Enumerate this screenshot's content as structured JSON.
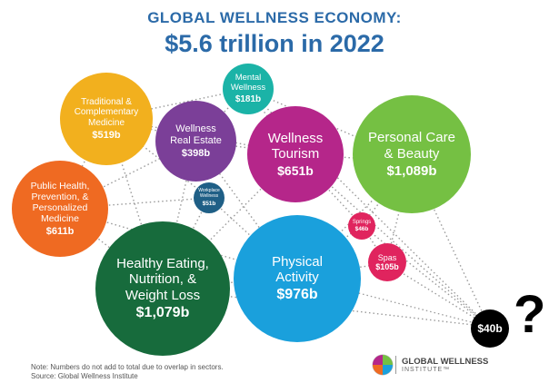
{
  "header": {
    "title_line1": "GLOBAL WELLNESS ECONOMY:",
    "title_line2": "$5.6 trillion in 2022"
  },
  "sectors": [
    {
      "key": "traditional",
      "label": "Traditional &\nComplementary\nMedicine",
      "value": "$519b",
      "color": "#f2b01e"
    },
    {
      "key": "mental",
      "label": "Mental\nWellness",
      "value": "$181b",
      "color": "#1bb3a7"
    },
    {
      "key": "real_estate",
      "label": "Wellness\nReal Estate",
      "value": "$398b",
      "color": "#7b3f98"
    },
    {
      "key": "tourism",
      "label": "Wellness\nTourism",
      "value": "$651b",
      "color": "#b5268a"
    },
    {
      "key": "personal_care",
      "label": "Personal Care\n& Beauty",
      "value": "$1,089b",
      "color": "#75c043"
    },
    {
      "key": "public_health",
      "label": "Public Health,\nPrevention, &\nPersonalized\nMedicine",
      "value": "$611b",
      "color": "#ef6a22"
    },
    {
      "key": "workplace",
      "label": "Workplace\nWellness",
      "value": "$51b",
      "color": "#1f5f86"
    },
    {
      "key": "springs",
      "label": "Springs",
      "value": "$46b",
      "color": "#e0245e"
    },
    {
      "key": "spas",
      "label": "Spas",
      "value": "$105b",
      "color": "#e0245e"
    },
    {
      "key": "healthy_eating",
      "label": "Healthy Eating,\nNutrition, &\nWeight Loss",
      "value": "$1,079b",
      "color": "#176b3c"
    },
    {
      "key": "physical",
      "label": "Physical\nActivity",
      "value": "$976b",
      "color": "#1aa0dc"
    },
    {
      "key": "extra",
      "label": "",
      "value": "$40b",
      "color": "#000000"
    }
  ],
  "question_mark": "?",
  "note": {
    "line1": "Note: Numbers do not add to total due to overlap in sectors.",
    "line2": "Source: Global Wellness Institute"
  },
  "logo": {
    "name": "GLOBAL WELLNESS",
    "sub": "INSTITUTE™"
  }
}
